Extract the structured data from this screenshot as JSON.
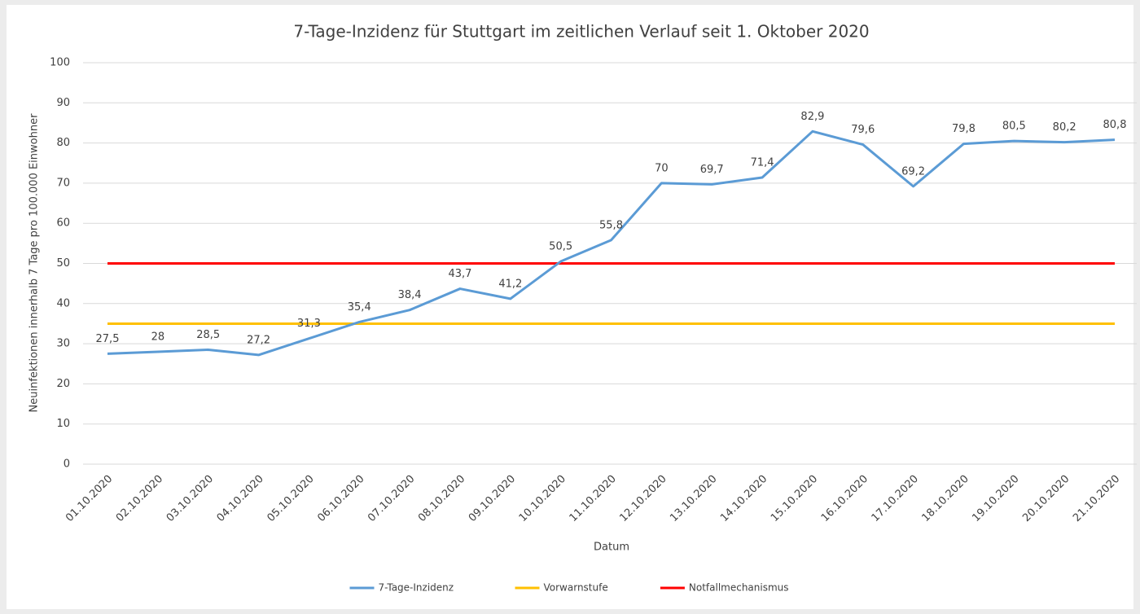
{
  "chart_data": {
    "type": "line",
    "title": "7-Tage-Inzidenz für Stuttgart im zeitlichen Verlauf seit 1. Oktober 2020",
    "x_label": "Datum",
    "y_label": "Neuinfektionen innerhalb 7 Tage pro 100.000 Einwohner",
    "categories": [
      "01.10.2020",
      "02.10.2020",
      "03.10.2020",
      "04.10.2020",
      "05.10.2020",
      "06.10.2020",
      "07.10.2020",
      "08.10.2020",
      "09.10.2020",
      "10.10.2020",
      "11.10.2020",
      "12.10.2020",
      "13.10.2020",
      "14.10.2020",
      "15.10.2020",
      "16.10.2020",
      "17.10.2020",
      "18.10.2020",
      "19.10.2020",
      "20.10.2020",
      "21.10.2020"
    ],
    "series": [
      {
        "name": "7-Tage-Inzidenz",
        "color": "#5b9bd5",
        "values": [
          27.5,
          28,
          28.5,
          27.2,
          31.3,
          35.4,
          38.4,
          43.7,
          41.2,
          50.5,
          55.8,
          70,
          69.7,
          71.4,
          82.9,
          79.6,
          69.2,
          79.8,
          80.5,
          80.2,
          80.8
        ],
        "value_labels": [
          "27,5",
          "28",
          "28,5",
          "27,2",
          "31,3",
          "35,4",
          "38,4",
          "43,7",
          "41,2",
          "50,5",
          "55,8",
          "70",
          "69,7",
          "71,4",
          "82,9",
          "79,6",
          "69,2",
          "79,8",
          "80,5",
          "80,2",
          "80,8"
        ]
      },
      {
        "name": "Vorwarnstufe",
        "color": "#ffc000",
        "values": [
          35,
          35,
          35,
          35,
          35,
          35,
          35,
          35,
          35,
          35,
          35,
          35,
          35,
          35,
          35,
          35,
          35,
          35,
          35,
          35,
          35
        ]
      },
      {
        "name": "Notfallmechanismus",
        "color": "#ff0000",
        "values": [
          50,
          50,
          50,
          50,
          50,
          50,
          50,
          50,
          50,
          50,
          50,
          50,
          50,
          50,
          50,
          50,
          50,
          50,
          50,
          50,
          50
        ]
      }
    ],
    "ylim": [
      0,
      100
    ],
    "yticks": [
      0,
      10,
      20,
      30,
      40,
      50,
      60,
      70,
      80,
      90,
      100
    ],
    "grid": true,
    "legend": "bottom"
  }
}
